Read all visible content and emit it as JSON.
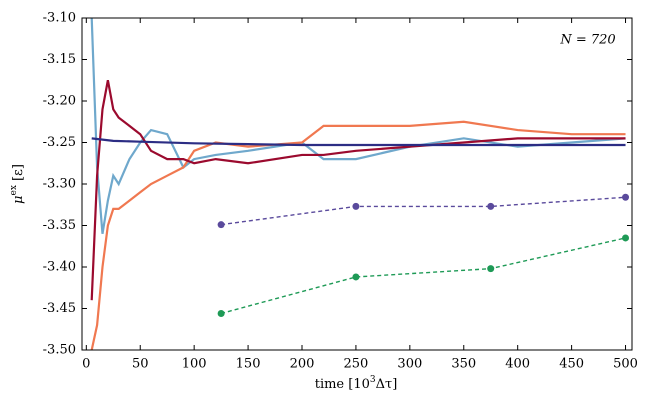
{
  "chart_data": {
    "type": "line",
    "annotation": "N = 720",
    "xlabel": [
      "time [10",
      "3",
      "Δτ]"
    ],
    "ylabel": [
      "μ",
      "ex",
      " [ε]"
    ],
    "xlim": [
      -4,
      506
    ],
    "ylim": [
      -3.5,
      -3.1
    ],
    "xticks": [
      0,
      50,
      100,
      150,
      200,
      250,
      300,
      350,
      400,
      450,
      500
    ],
    "yticks": [
      {
        "value": -3.5,
        "label": "-3.50"
      },
      {
        "value": -3.45,
        "label": "-3.45"
      },
      {
        "value": -3.4,
        "label": "-3.40"
      },
      {
        "value": -3.35,
        "label": "-3.35"
      },
      {
        "value": -3.3,
        "label": "-3.30"
      },
      {
        "value": -3.25,
        "label": "-3.25"
      },
      {
        "value": -3.2,
        "label": "-3.20"
      },
      {
        "value": -3.15,
        "label": "-3.15"
      },
      {
        "value": -3.1,
        "label": "-3.10"
      }
    ],
    "series": [
      {
        "color": "#6fa8cc",
        "style": "solid",
        "marker": false,
        "x": [
          5,
          10,
          15,
          20,
          25,
          30,
          40,
          50,
          60,
          75,
          90,
          100,
          120,
          150,
          200,
          220,
          250,
          300,
          350,
          400,
          450,
          500
        ],
        "values": [
          -3.1,
          -3.28,
          -3.36,
          -3.32,
          -3.29,
          -3.3,
          -3.27,
          -3.25,
          -3.235,
          -3.24,
          -3.28,
          -3.27,
          -3.265,
          -3.26,
          -3.25,
          -3.27,
          -3.27,
          -3.255,
          -3.245,
          -3.255,
          -3.25,
          -3.245
        ]
      },
      {
        "color": "#f07850",
        "style": "solid",
        "marker": false,
        "x": [
          5,
          10,
          15,
          20,
          25,
          30,
          40,
          50,
          60,
          75,
          90,
          100,
          120,
          150,
          200,
          220,
          250,
          300,
          350,
          400,
          450,
          500
        ],
        "values": [
          -3.5,
          -3.47,
          -3.4,
          -3.35,
          -3.33,
          -3.33,
          -3.32,
          -3.31,
          -3.3,
          -3.29,
          -3.28,
          -3.26,
          -3.25,
          -3.255,
          -3.25,
          -3.23,
          -3.23,
          -3.23,
          -3.225,
          -3.235,
          -3.24,
          -3.24
        ]
      },
      {
        "color": "#9b0a2e",
        "style": "solid",
        "marker": false,
        "x": [
          5,
          10,
          15,
          20,
          25,
          30,
          40,
          50,
          60,
          75,
          90,
          100,
          120,
          150,
          200,
          220,
          250,
          300,
          350,
          400,
          450,
          500
        ],
        "values": [
          -3.44,
          -3.29,
          -3.21,
          -3.175,
          -3.21,
          -3.22,
          -3.23,
          -3.24,
          -3.26,
          -3.27,
          -3.27,
          -3.275,
          -3.27,
          -3.275,
          -3.265,
          -3.265,
          -3.26,
          -3.255,
          -3.25,
          -3.245,
          -3.245,
          -3.245
        ]
      },
      {
        "color": "#2c2d84",
        "style": "solid",
        "marker": false,
        "x": [
          5,
          25,
          50,
          100,
          150,
          200,
          300,
          400,
          500
        ],
        "values": [
          -3.245,
          -3.248,
          -3.249,
          -3.251,
          -3.252,
          -3.253,
          -3.253,
          -3.253,
          -3.253
        ]
      },
      {
        "color": "#5a4a9c",
        "style": "dashed",
        "marker": true,
        "x": [
          125,
          250,
          375,
          500
        ],
        "values": [
          -3.349,
          -3.327,
          -3.327,
          -3.316
        ]
      },
      {
        "color": "#1e9a56",
        "style": "dashed",
        "marker": true,
        "x": [
          125,
          250,
          375,
          500
        ],
        "values": [
          -3.456,
          -3.412,
          -3.402,
          -3.365
        ]
      }
    ]
  }
}
